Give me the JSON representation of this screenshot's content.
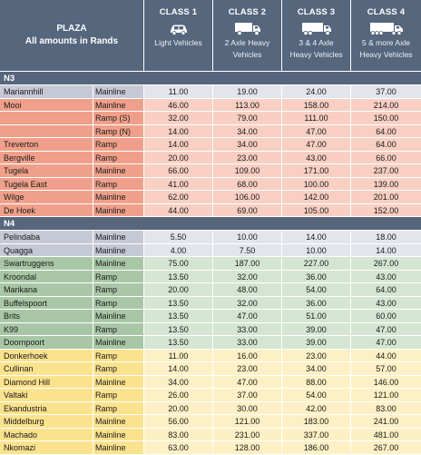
{
  "header": {
    "plaza_line1": "PLAZA",
    "plaza_line2": "All amounts in Rands",
    "classes": [
      {
        "name": "CLASS 1",
        "desc1": "Light Vehicles",
        "desc2": "",
        "icon": "car-icon"
      },
      {
        "name": "CLASS 2",
        "desc1": "2 Axle Heavy",
        "desc2": "Vehicles",
        "icon": "truck-2-axle-icon"
      },
      {
        "name": "CLASS 3",
        "desc1": "3 & 4 Axle",
        "desc2": "Heavy Vehicles",
        "icon": "truck-3-4-axle-icon"
      },
      {
        "name": "CLASS 4",
        "desc1": "5 & more Axle",
        "desc2": "Heavy Vehicles",
        "icon": "truck-5-axle-icon"
      }
    ]
  },
  "colors": {
    "header_bg": "#55667d",
    "grey": "#c5c9d6",
    "salmon": "#f0a08a",
    "green": "#a9c7a6",
    "yellow": "#fbe28d"
  },
  "sections": [
    {
      "title": "N3",
      "rows": [
        {
          "name": "Mariannhill",
          "type": "Mainline",
          "c1": "11.00",
          "c2": "19.00",
          "c3": "24.00",
          "c4": "37.00",
          "color": "grey"
        },
        {
          "name": "Mooi",
          "type": "Mainline",
          "c1": "46.00",
          "c2": "113.00",
          "c3": "158.00",
          "c4": "214.00",
          "color": "salmon"
        },
        {
          "name": "",
          "type": "Ramp (S)",
          "c1": "32.00",
          "c2": "79.00",
          "c3": "111.00",
          "c4": "150.00",
          "color": "salmon"
        },
        {
          "name": "",
          "type": "Ramp (N)",
          "c1": "14.00",
          "c2": "34.00",
          "c3": "47.00",
          "c4": "64.00",
          "color": "salmon"
        },
        {
          "name": "Treverton",
          "type": "Ramp",
          "c1": "14.00",
          "c2": "34.00",
          "c3": "47.00",
          "c4": "64.00",
          "color": "salmon"
        },
        {
          "name": "Bergville",
          "type": "Ramp",
          "c1": "20.00",
          "c2": "23.00",
          "c3": "43.00",
          "c4": "66.00",
          "color": "salmon"
        },
        {
          "name": "Tugela",
          "type": "Mainline",
          "c1": "66.00",
          "c2": "109.00",
          "c3": "171.00",
          "c4": "237.00",
          "color": "salmon"
        },
        {
          "name": "Tugela East",
          "type": "Ramp",
          "c1": "41.00",
          "c2": "68.00",
          "c3": "100.00",
          "c4": "139.00",
          "color": "salmon"
        },
        {
          "name": "Wilge",
          "type": "Mainline",
          "c1": "62.00",
          "c2": "106.00",
          "c3": "142.00",
          "c4": "201.00",
          "color": "salmon"
        },
        {
          "name": "De Hoek",
          "type": "Mainline",
          "c1": "44.00",
          "c2": "69.00",
          "c3": "105.00",
          "c4": "152.00",
          "color": "salmon"
        }
      ]
    },
    {
      "title": "N4",
      "rows": [
        {
          "name": "Pelindaba",
          "type": "Mainline",
          "c1": "5.50",
          "c2": "10.00",
          "c3": "14.00",
          "c4": "18.00",
          "color": "grey"
        },
        {
          "name": "Quagga",
          "type": "Mainline",
          "c1": "4.00",
          "c2": "7.50",
          "c3": "10.00",
          "c4": "14.00",
          "color": "grey"
        },
        {
          "name": "Swartruggens",
          "type": "Mainline",
          "c1": "75.00",
          "c2": "187.00",
          "c3": "227.00",
          "c4": "267.00",
          "color": "green"
        },
        {
          "name": "Kroondal",
          "type": "Ramp",
          "c1": "13.50",
          "c2": "32.00",
          "c3": "36.00",
          "c4": "43.00",
          "color": "green"
        },
        {
          "name": "Marikana",
          "type": "Ramp",
          "c1": "20.00",
          "c2": "48.00",
          "c3": "54.00",
          "c4": "64.00",
          "color": "green"
        },
        {
          "name": "Buffelspoort",
          "type": "Ramp",
          "c1": "13.50",
          "c2": "32.00",
          "c3": "36.00",
          "c4": "43.00",
          "color": "green"
        },
        {
          "name": "Brits",
          "type": "Mainline",
          "c1": "13.50",
          "c2": "47.00",
          "c3": "51.00",
          "c4": "60.00",
          "color": "green"
        },
        {
          "name": "K99",
          "type": "Ramp",
          "c1": "13.50",
          "c2": "33.00",
          "c3": "39.00",
          "c4": "47.00",
          "color": "green"
        },
        {
          "name": "Doornpoort",
          "type": "Mainline",
          "c1": "13.50",
          "c2": "33.00",
          "c3": "39.00",
          "c4": "47.00",
          "color": "green"
        },
        {
          "name": "Donkerhoek",
          "type": "Ramp",
          "c1": "11.00",
          "c2": "16.00",
          "c3": "23.00",
          "c4": "44.00",
          "color": "yellow"
        },
        {
          "name": "Cullinan",
          "type": "Ramp",
          "c1": "14.00",
          "c2": "23.00",
          "c3": "34.00",
          "c4": "57.00",
          "color": "yellow"
        },
        {
          "name": "Diamond Hill",
          "type": "Mainline",
          "c1": "34.00",
          "c2": "47.00",
          "c3": "88.00",
          "c4": "146.00",
          "color": "yellow"
        },
        {
          "name": "Valtaki",
          "type": "Ramp",
          "c1": "26.00",
          "c2": "37.00",
          "c3": "54.00",
          "c4": "121.00",
          "color": "yellow"
        },
        {
          "name": "Ekandustria",
          "type": "Ramp",
          "c1": "20.00",
          "c2": "30.00",
          "c3": "42.00",
          "c4": "83.00",
          "color": "yellow"
        },
        {
          "name": "Middelburg",
          "type": "Mainline",
          "c1": "56.00",
          "c2": "121.00",
          "c3": "183.00",
          "c4": "241.00",
          "color": "yellow"
        },
        {
          "name": "Machado",
          "type": "Mainline",
          "c1": "83.00",
          "c2": "231.00",
          "c3": "337.00",
          "c4": "481.00",
          "color": "yellow"
        },
        {
          "name": "Nkomazi",
          "type": "Mainline",
          "c1": "63.00",
          "c2": "128.00",
          "c3": "186.00",
          "c4": "267.00",
          "color": "yellow"
        }
      ]
    }
  ]
}
